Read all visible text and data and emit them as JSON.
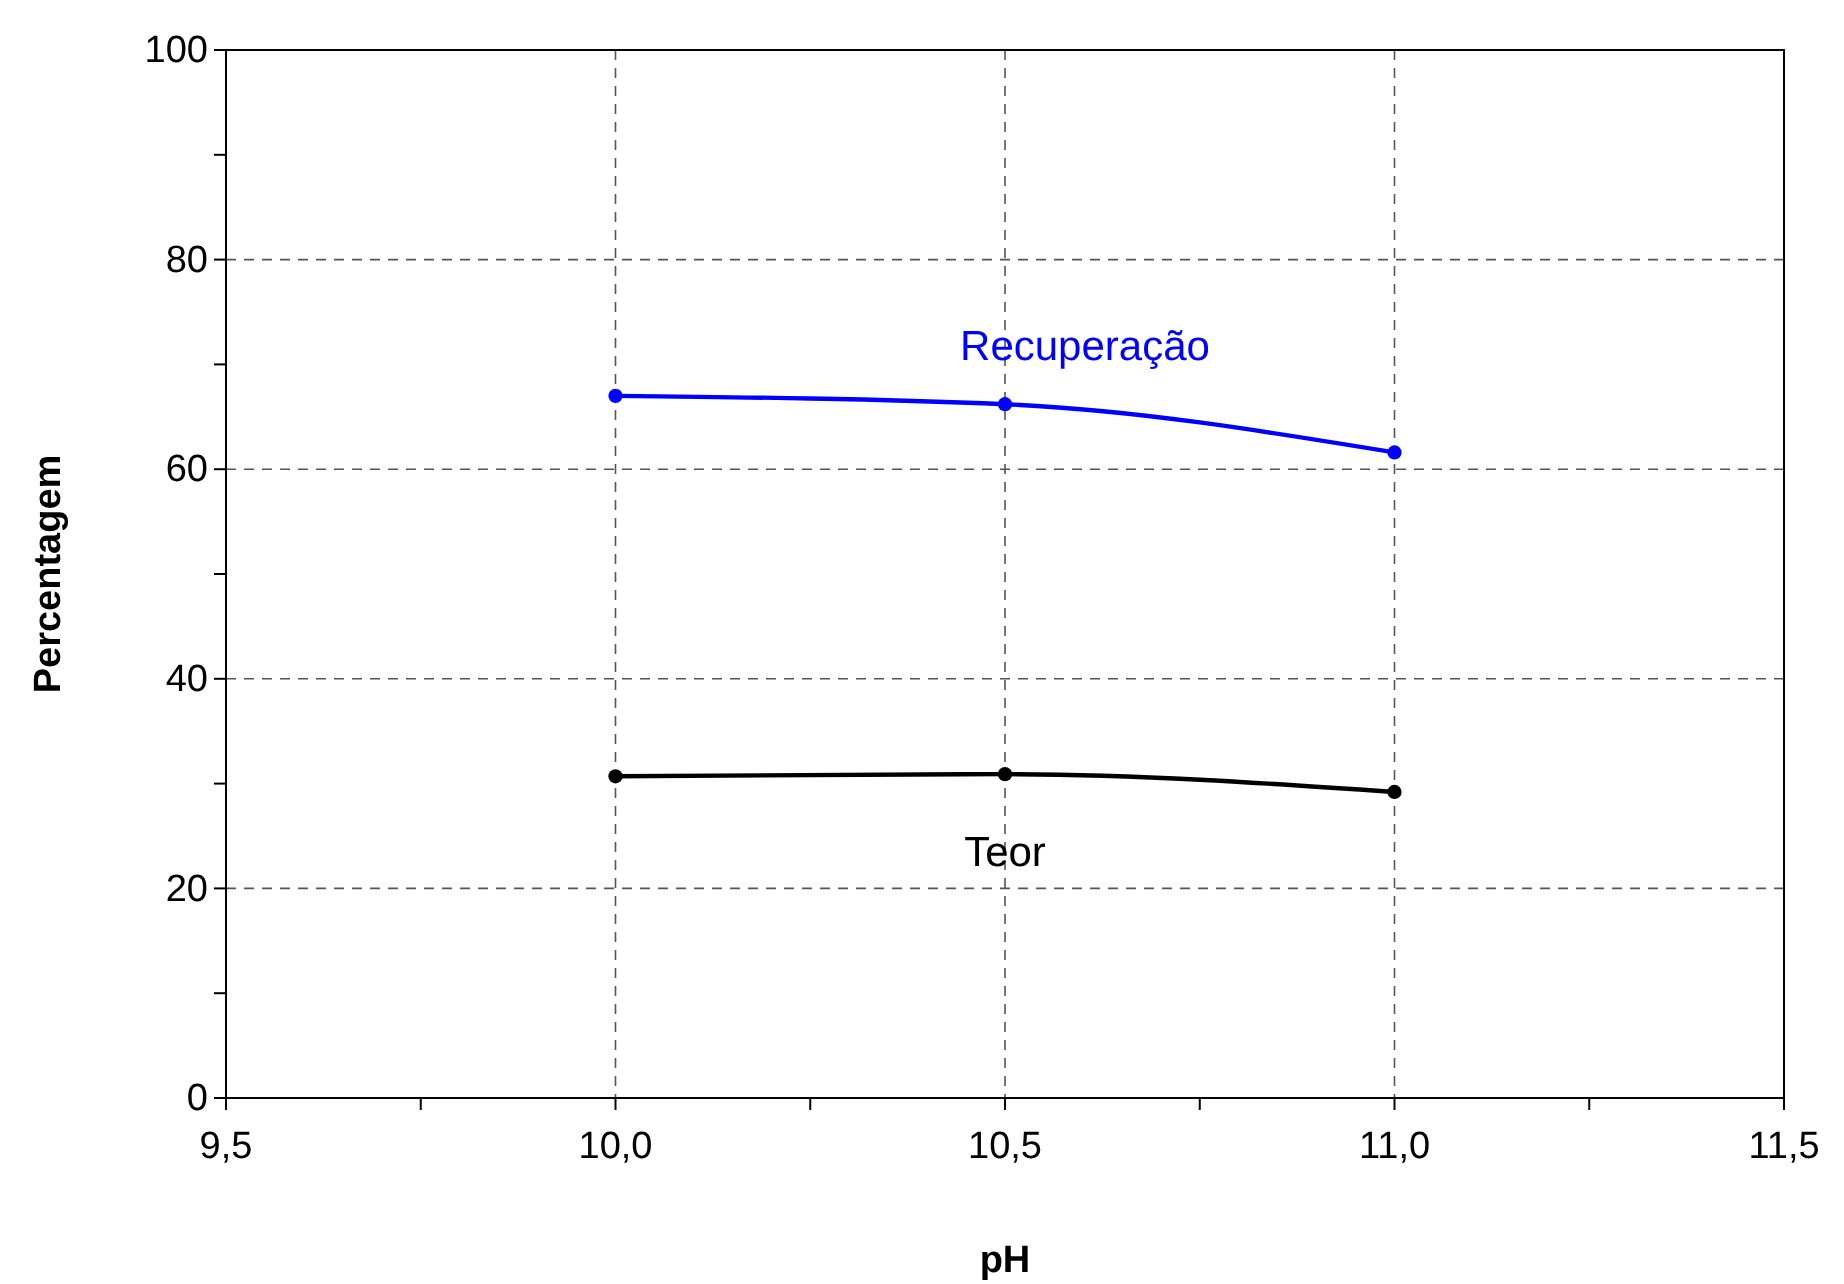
{
  "chart_data": {
    "type": "line",
    "xlabel": "pH",
    "ylabel": "Percentagem",
    "xlim": [
      9.5,
      11.5
    ],
    "xticks": [
      {
        "value": 9.5,
        "label": "9,5"
      },
      {
        "value": 9.75,
        "label": null
      },
      {
        "value": 10,
        "label": "10,0"
      },
      {
        "value": 10.25,
        "label": null
      },
      {
        "value": 10.5,
        "label": "10,5"
      },
      {
        "value": 10.75,
        "label": null
      },
      {
        "value": 11,
        "label": "11,0"
      },
      {
        "value": 11.25,
        "label": null
      },
      {
        "value": 11.5,
        "label": "11,5"
      }
    ],
    "ylim": [
      0,
      100
    ],
    "yticks": [
      0,
      {
        "value": 10,
        "label": null
      },
      20,
      {
        "value": 30,
        "label": null
      },
      40,
      {
        "value": 50,
        "label": null
      },
      60,
      {
        "value": 70,
        "label": null
      },
      80,
      {
        "value": 90,
        "label": null
      },
      100
    ],
    "x": [
      10,
      10.5,
      11
    ],
    "series": [
      {
        "name": "Recuperação",
        "color": "#0000ff",
        "values": [
          67.0,
          66.2,
          61.6
        ]
      },
      {
        "name": "Teor",
        "color": "#000000",
        "values": [
          30.7,
          30.9,
          29.2
        ]
      }
    ],
    "grid": true,
    "marker": "circle",
    "line_style": "solid"
  }
}
